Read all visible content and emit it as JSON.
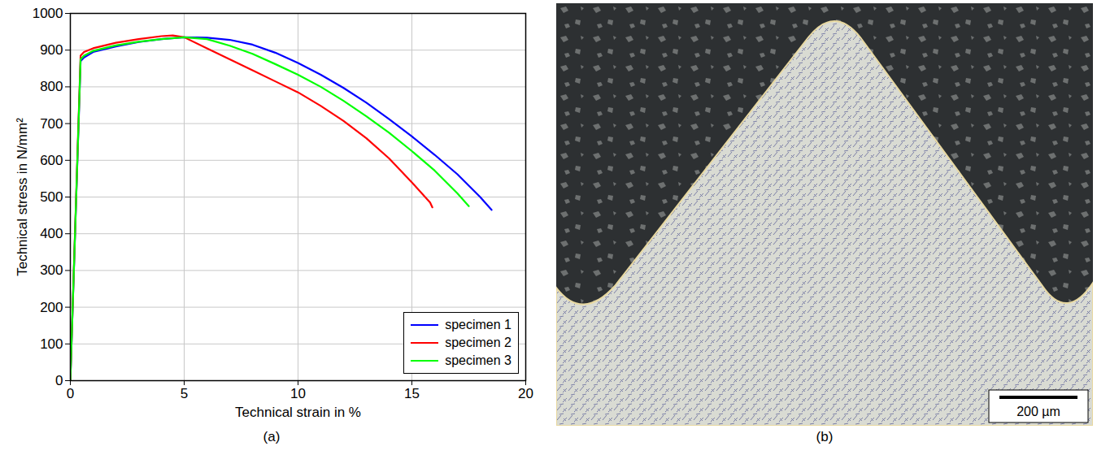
{
  "chart_data": {
    "type": "line",
    "xlabel": "Technical strain in %",
    "ylabel": "Technical stress in N/mm²",
    "xlim": [
      0,
      20
    ],
    "xticks": [
      0,
      5,
      10,
      15,
      20
    ],
    "ylim": [
      0,
      1000
    ],
    "yticks": [
      0,
      100,
      200,
      300,
      400,
      500,
      600,
      700,
      800,
      900,
      1000
    ],
    "grid": true,
    "legend": "bottom-right",
    "series": [
      {
        "name": "specimen 1",
        "color": "#0000ff",
        "x": [
          0,
          0.45,
          0.6,
          1,
          2,
          3,
          4,
          5,
          6,
          7,
          8,
          9,
          10,
          11,
          12,
          13,
          14,
          15,
          16,
          17,
          18,
          18.5
        ],
        "values": [
          0,
          870,
          880,
          895,
          910,
          922,
          930,
          935,
          934,
          928,
          915,
          893,
          865,
          833,
          797,
          757,
          712,
          665,
          615,
          562,
          500,
          465
        ]
      },
      {
        "name": "specimen 2",
        "color": "#ff0000",
        "x": [
          0,
          0.45,
          0.6,
          1,
          2,
          3,
          4,
          4.5,
          5,
          6,
          7,
          8,
          9,
          10,
          11,
          12,
          13,
          14,
          15,
          15.8,
          15.9
        ],
        "values": [
          0,
          885,
          895,
          905,
          920,
          930,
          938,
          940,
          935,
          905,
          875,
          845,
          815,
          785,
          748,
          707,
          660,
          605,
          540,
          485,
          472
        ]
      },
      {
        "name": "specimen 3",
        "color": "#00ff00",
        "x": [
          0,
          0.45,
          0.6,
          1,
          2,
          3,
          4,
          5,
          6,
          7,
          8,
          9,
          10,
          11,
          12,
          13,
          14,
          15,
          16,
          17,
          17.5
        ],
        "values": [
          0,
          875,
          885,
          898,
          913,
          923,
          930,
          935,
          930,
          912,
          890,
          862,
          833,
          800,
          762,
          720,
          675,
          625,
          572,
          510,
          475
        ]
      }
    ]
  },
  "figure": {
    "panel_labels": [
      "(a)",
      "(b)"
    ],
    "micrograph": {
      "scale_bar": "200 µm"
    }
  }
}
